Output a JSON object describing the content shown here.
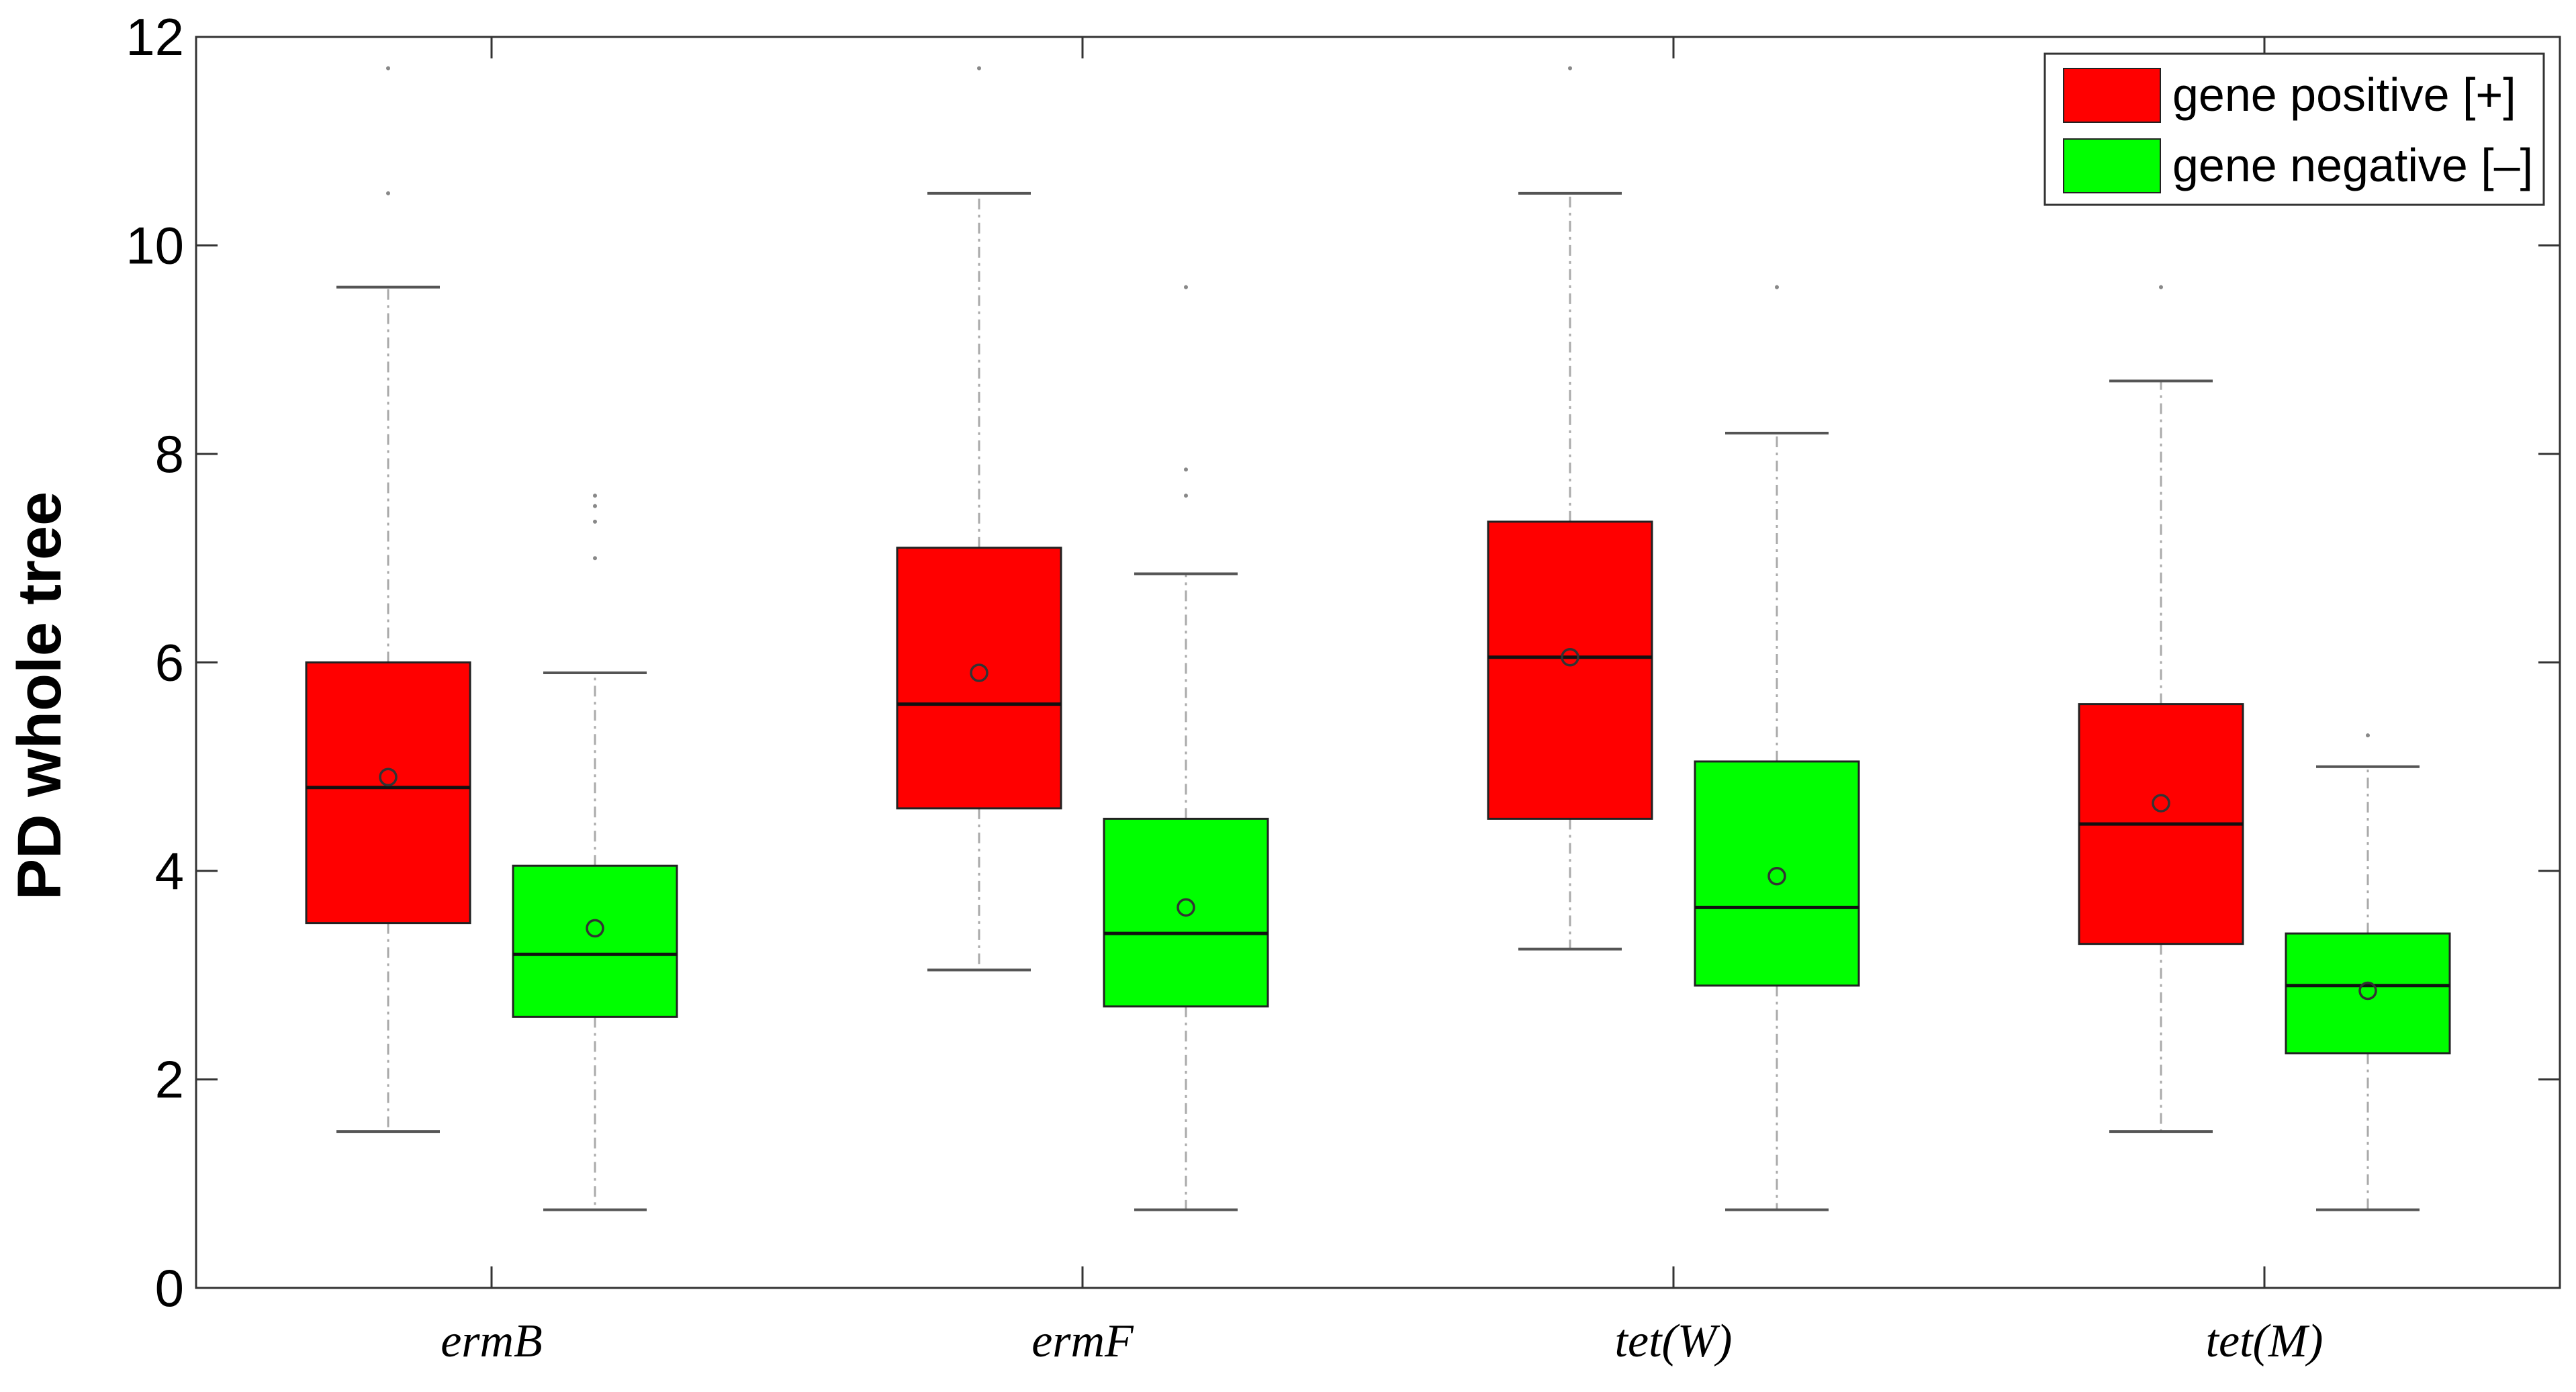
{
  "chart_data": {
    "type": "box",
    "ylabel": "PD whole tree",
    "xlabel": "",
    "ylim": [
      0,
      12
    ],
    "yticks": [
      "0",
      "2",
      "4",
      "6",
      "8",
      "10",
      "12"
    ],
    "categories": [
      "ermB",
      "ermF",
      "tet(W)",
      "tet(M)"
    ],
    "legend_position": "top-right",
    "series": [
      {
        "name": "gene positive [+]",
        "color": "#ff0000",
        "boxes": [
          {
            "whisker_low": 1.5,
            "q1": 3.5,
            "median": 4.8,
            "q3": 6.0,
            "whisker_high": 9.6,
            "mean": 4.9,
            "outliers": [
              10.5,
              11.7
            ]
          },
          {
            "whisker_low": 3.05,
            "q1": 4.6,
            "median": 5.6,
            "q3": 7.1,
            "whisker_high": 10.5,
            "mean": 5.9,
            "outliers": [
              11.7
            ]
          },
          {
            "whisker_low": 3.25,
            "q1": 4.5,
            "median": 6.05,
            "q3": 7.35,
            "whisker_high": 10.5,
            "mean": 6.05,
            "outliers": [
              11.7
            ]
          },
          {
            "whisker_low": 1.5,
            "q1": 3.3,
            "median": 4.45,
            "q3": 5.6,
            "whisker_high": 8.7,
            "mean": 4.65,
            "outliers": [
              9.6
            ]
          }
        ]
      },
      {
        "name": "gene negative [–]",
        "color": "#00ff00",
        "boxes": [
          {
            "whisker_low": 0.75,
            "q1": 2.6,
            "median": 3.2,
            "q3": 4.05,
            "whisker_high": 5.9,
            "mean": 3.45,
            "outliers": [
              7.0,
              7.35,
              7.5,
              7.6
            ]
          },
          {
            "whisker_low": 0.75,
            "q1": 2.7,
            "median": 3.4,
            "q3": 4.5,
            "whisker_high": 6.85,
            "mean": 3.65,
            "outliers": [
              7.6,
              7.85,
              9.6
            ]
          },
          {
            "whisker_low": 0.75,
            "q1": 2.9,
            "median": 3.65,
            "q3": 5.05,
            "whisker_high": 8.2,
            "mean": 3.95,
            "outliers": [
              9.6
            ]
          },
          {
            "whisker_low": 0.75,
            "q1": 2.25,
            "median": 2.9,
            "q3": 3.4,
            "whisker_high": 5.0,
            "mean": 2.85,
            "outliers": [
              5.3
            ]
          }
        ]
      }
    ]
  }
}
